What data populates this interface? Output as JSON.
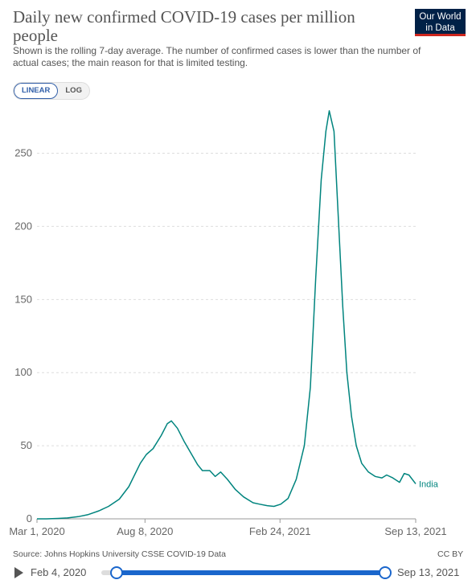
{
  "header": {
    "title": "Daily new confirmed COVID-19 cases per million people",
    "subtitle": "Shown is the rolling 7-day average. The number of confirmed cases is lower than the number of actual cases; the main reason for that is limited testing.",
    "logo_line1": "Our World",
    "logo_line2": "in Data"
  },
  "controls": {
    "linear_label": "LINEAR",
    "log_label": "LOG"
  },
  "footer": {
    "source": "Source: Johns Hopkins University CSSE COVID-19 Data",
    "license": "CC BY"
  },
  "timeline": {
    "start_label": "Feb 4, 2020",
    "end_label": "Sep 13, 2021"
  },
  "colors": {
    "series": "#00847e",
    "grid": "#dddddd",
    "accent": "#1a66cc"
  },
  "chart_data": {
    "type": "line",
    "title": "Daily new confirmed COVID-19 cases per million people",
    "x_start": "2020-03-01",
    "x_end": "2021-09-13",
    "x_tick_labels": [
      "Mar 1, 2020",
      "Aug 8, 2020",
      "Feb 24, 2021",
      "Sep 13, 2021"
    ],
    "x_tick_dates": [
      "2020-03-01",
      "2020-08-08",
      "2021-02-24",
      "2021-09-13"
    ],
    "y_ticks": [
      0,
      50,
      100,
      150,
      200,
      250
    ],
    "ylim": [
      0,
      280
    ],
    "grid": "horizontal dashed",
    "series": [
      {
        "name": "India",
        "points": [
          [
            "2020-03-01",
            0
          ],
          [
            "2020-03-15",
            0
          ],
          [
            "2020-04-01",
            0.3
          ],
          [
            "2020-04-15",
            0.6
          ],
          [
            "2020-05-01",
            1.5
          ],
          [
            "2020-05-15",
            2.8
          ],
          [
            "2020-06-01",
            5.5
          ],
          [
            "2020-06-15",
            8.5
          ],
          [
            "2020-07-01",
            13.5
          ],
          [
            "2020-07-15",
            22
          ],
          [
            "2020-08-01",
            38
          ],
          [
            "2020-08-10",
            44
          ],
          [
            "2020-08-20",
            48
          ],
          [
            "2020-09-01",
            57
          ],
          [
            "2020-09-10",
            65
          ],
          [
            "2020-09-16",
            67
          ],
          [
            "2020-09-25",
            62
          ],
          [
            "2020-10-05",
            53
          ],
          [
            "2020-10-15",
            45
          ],
          [
            "2020-10-25",
            37
          ],
          [
            "2020-11-01",
            33
          ],
          [
            "2020-11-12",
            33
          ],
          [
            "2020-11-20",
            29
          ],
          [
            "2020-11-28",
            32
          ],
          [
            "2020-12-08",
            27
          ],
          [
            "2020-12-20",
            20
          ],
          [
            "2021-01-01",
            15
          ],
          [
            "2021-01-15",
            11
          ],
          [
            "2021-01-25",
            10
          ],
          [
            "2021-02-05",
            9
          ],
          [
            "2021-02-15",
            8.5
          ],
          [
            "2021-02-25",
            10
          ],
          [
            "2021-03-08",
            14
          ],
          [
            "2021-03-20",
            27
          ],
          [
            "2021-04-01",
            50
          ],
          [
            "2021-04-10",
            90
          ],
          [
            "2021-04-18",
            165
          ],
          [
            "2021-04-26",
            232
          ],
          [
            "2021-05-03",
            265
          ],
          [
            "2021-05-08",
            279
          ],
          [
            "2021-05-15",
            265
          ],
          [
            "2021-05-22",
            200
          ],
          [
            "2021-05-28",
            145
          ],
          [
            "2021-06-03",
            100
          ],
          [
            "2021-06-10",
            70
          ],
          [
            "2021-06-17",
            50
          ],
          [
            "2021-06-25",
            38
          ],
          [
            "2021-07-05",
            32
          ],
          [
            "2021-07-15",
            29
          ],
          [
            "2021-07-25",
            28
          ],
          [
            "2021-08-01",
            30
          ],
          [
            "2021-08-10",
            28
          ],
          [
            "2021-08-20",
            25
          ],
          [
            "2021-08-27",
            31
          ],
          [
            "2021-09-03",
            30
          ],
          [
            "2021-09-13",
            24
          ]
        ]
      }
    ]
  }
}
